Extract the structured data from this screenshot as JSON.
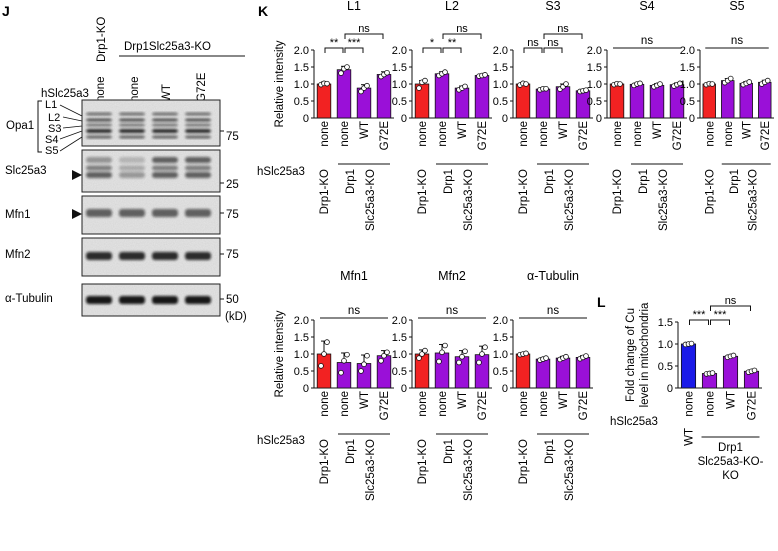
{
  "panel_labels": {
    "j": "J",
    "k": "K",
    "l": "L"
  },
  "blot": {
    "top_headers": {
      "drp1ko": "Drp1-KO",
      "double": "Drp1Slc25a3-KO"
    },
    "row_label": "hSlc25a3",
    "lanes": [
      "none",
      "none",
      "WT",
      "G72E"
    ],
    "bands": {
      "l1": "L1",
      "l2": "L2",
      "s3": "S3",
      "s4": "S4",
      "s5": "S5"
    },
    "opa1": "Opa1",
    "panels": [
      {
        "label": "Slc25a3",
        "marker": "25",
        "arrow": true
      },
      {
        "label": "Mfn1",
        "marker": "75",
        "arrow": true
      },
      {
        "label": "Mfn2",
        "marker": "75",
        "arrow": false
      },
      {
        "label": "α-Tubulin",
        "marker": "50",
        "arrow": false
      }
    ],
    "opa1_marker": "75",
    "unit": "(kD)"
  },
  "chart_data": [
    {
      "type": "bar",
      "title": "L1",
      "ylabel": "Relative intensity",
      "ylim": [
        0,
        2.0
      ],
      "yticks": [
        "0",
        "0.5",
        "1.0",
        "1.5",
        "2.0"
      ],
      "categories": [
        "none",
        "none",
        "WT",
        "G72E"
      ],
      "values": [
        1.0,
        1.42,
        0.88,
        1.28
      ],
      "errors": [
        0.06,
        0.1,
        0.1,
        0.08
      ],
      "points": [
        [
          0.98,
          1.02,
          1.01
        ],
        [
          1.32,
          1.45,
          1.5
        ],
        [
          0.78,
          0.88,
          0.95
        ],
        [
          1.22,
          1.28,
          1.33
        ]
      ],
      "sig": [
        {
          "from": 0,
          "to": 1,
          "label": "**"
        },
        {
          "from": 1,
          "to": 2,
          "label": "***"
        },
        {
          "from": 1,
          "to": 3,
          "label": "ns"
        }
      ]
    },
    {
      "type": "bar",
      "title": "L2",
      "ylabel": "",
      "ylim": [
        0,
        2.0
      ],
      "yticks": [
        "0",
        "0.5",
        "1.0",
        "1.5",
        "2.0"
      ],
      "categories": [
        "none",
        "none",
        "WT",
        "G72E"
      ],
      "values": [
        1.0,
        1.3,
        0.88,
        1.25
      ],
      "errors": [
        0.1,
        0.06,
        0.06,
        0.03
      ],
      "points": [
        [
          0.88,
          1.05,
          1.1
        ],
        [
          1.25,
          1.3,
          1.35
        ],
        [
          0.83,
          0.88,
          0.93
        ],
        [
          1.23,
          1.25,
          1.27
        ]
      ],
      "sig": [
        {
          "from": 0,
          "to": 1,
          "label": "*"
        },
        {
          "from": 1,
          "to": 2,
          "label": "**"
        },
        {
          "from": 1,
          "to": 3,
          "label": "ns"
        }
      ]
    },
    {
      "type": "bar",
      "title": "S3",
      "ylabel": "",
      "ylim": [
        0,
        2.0
      ],
      "yticks": [
        "0",
        "0.5",
        "1.0",
        "1.5",
        "2.0"
      ],
      "categories": [
        "none",
        "none",
        "WT",
        "G72E"
      ],
      "values": [
        1.0,
        0.85,
        0.92,
        0.8
      ],
      "errors": [
        0.04,
        0.03,
        0.08,
        0.03
      ],
      "points": [
        [
          0.97,
          1.02,
          1.0
        ],
        [
          0.83,
          0.86,
          0.86
        ],
        [
          0.85,
          0.92,
          1.0
        ],
        [
          0.78,
          0.8,
          0.82
        ]
      ],
      "sig": [
        {
          "from": 0,
          "to": 1,
          "label": "ns"
        },
        {
          "from": 1,
          "to": 2,
          "label": "ns"
        },
        {
          "from": 1,
          "to": 3,
          "label": "ns"
        }
      ]
    },
    {
      "type": "bar",
      "title": "S4",
      "ylabel": "",
      "ylim": [
        0,
        2.0
      ],
      "yticks": [
        "0",
        "0.5",
        "1.0",
        "1.5",
        "2.0"
      ],
      "categories": [
        "none",
        "none",
        "WT",
        "G72E"
      ],
      "values": [
        1.0,
        0.99,
        0.96,
        0.98
      ],
      "errors": [
        0.03,
        0.04,
        0.05,
        0.05
      ],
      "points": [
        [
          0.98,
          1.01,
          1.0
        ],
        [
          0.96,
          1.0,
          1.02
        ],
        [
          0.92,
          0.96,
          1.0
        ],
        [
          0.94,
          0.98,
          1.02
        ]
      ],
      "sig": [
        {
          "from": 0,
          "to": 3,
          "label": "ns"
        }
      ]
    },
    {
      "type": "bar",
      "title": "S5",
      "ylabel": "",
      "ylim": [
        0,
        2.0
      ],
      "yticks": [
        "0",
        "0.5",
        "1.0",
        "1.5",
        "2.0"
      ],
      "categories": [
        "none",
        "none",
        "WT",
        "G72E"
      ],
      "values": [
        1.0,
        1.1,
        1.02,
        1.05
      ],
      "errors": [
        0.03,
        0.06,
        0.05,
        0.06
      ],
      "points": [
        [
          0.98,
          1.01,
          1.0
        ],
        [
          1.04,
          1.1,
          1.16
        ],
        [
          0.98,
          1.02,
          1.06
        ],
        [
          1.0,
          1.05,
          1.1
        ]
      ],
      "sig": [
        {
          "from": 0,
          "to": 3,
          "label": "ns"
        }
      ]
    },
    {
      "type": "bar",
      "title": "Mfn1",
      "ylabel": "Relative intensity",
      "ylim": [
        0,
        2.0
      ],
      "yticks": [
        "0",
        "0.5",
        "1.0",
        "1.5",
        "2.0"
      ],
      "categories": [
        "none",
        "none",
        "WT",
        "G72E"
      ],
      "values": [
        1.0,
        0.75,
        0.72,
        0.95
      ],
      "errors": [
        0.38,
        0.28,
        0.25,
        0.15
      ],
      "points": [
        [
          0.65,
          1.0,
          1.35
        ],
        [
          0.45,
          0.8,
          0.98
        ],
        [
          0.5,
          0.7,
          0.95
        ],
        [
          0.8,
          0.95,
          1.05
        ]
      ],
      "sig": [
        {
          "from": 0,
          "to": 3,
          "label": "ns"
        }
      ]
    },
    {
      "type": "bar",
      "title": "Mfn2",
      "ylabel": "",
      "ylim": [
        0,
        2.0
      ],
      "yticks": [
        "0",
        "0.5",
        "1.0",
        "1.5",
        "2.0"
      ],
      "categories": [
        "none",
        "none",
        "WT",
        "G72E"
      ],
      "values": [
        1.0,
        1.03,
        0.92,
        0.98
      ],
      "errors": [
        0.12,
        0.25,
        0.18,
        0.25
      ],
      "points": [
        [
          0.88,
          1.0,
          1.1
        ],
        [
          0.78,
          1.05,
          1.25
        ],
        [
          0.75,
          0.92,
          1.08
        ],
        [
          0.75,
          1.0,
          1.2
        ]
      ],
      "sig": [
        {
          "from": 0,
          "to": 3,
          "label": "ns"
        }
      ]
    },
    {
      "type": "bar",
      "title": "α-Tubulin",
      "ylabel": "",
      "ylim": [
        0,
        2.0
      ],
      "yticks": [
        "0",
        "0.5",
        "1.0",
        "1.5",
        "2.0"
      ],
      "categories": [
        "none",
        "none",
        "WT",
        "G72E"
      ],
      "values": [
        1.0,
        0.85,
        0.88,
        0.9
      ],
      "errors": [
        0.03,
        0.04,
        0.05,
        0.05
      ],
      "points": [
        [
          0.98,
          1.0,
          1.02
        ],
        [
          0.82,
          0.85,
          0.88
        ],
        [
          0.84,
          0.88,
          0.92
        ],
        [
          0.86,
          0.9,
          0.94
        ]
      ],
      "sig": [
        {
          "from": 0,
          "to": 3,
          "label": "ns"
        }
      ]
    },
    {
      "type": "bar",
      "title": "",
      "ylabel": "Fold change of Cu level in mitochondria",
      "ylim": [
        0,
        1.5
      ],
      "yticks": [
        "0",
        "0.5",
        "1.0",
        "1.5"
      ],
      "categories": [
        "none",
        "none",
        "WT",
        "G72E"
      ],
      "values": [
        1.0,
        0.33,
        0.72,
        0.38
      ],
      "errors": [
        0.02,
        0.02,
        0.03,
        0.03
      ],
      "points": [
        [
          0.99,
          1.0,
          1.01
        ],
        [
          0.32,
          0.33,
          0.34
        ],
        [
          0.7,
          0.72,
          0.74
        ],
        [
          0.36,
          0.38,
          0.4
        ]
      ],
      "sig": [
        {
          "from": 0,
          "to": 1,
          "label": "***"
        },
        {
          "from": 1,
          "to": 2,
          "label": "***"
        },
        {
          "from": 1,
          "to": 3,
          "label": "ns"
        }
      ]
    }
  ],
  "groups": {
    "drp1ko": "Drp1-KO",
    "drp1": "Drp1",
    "slc": "Slc25a3-KO",
    "ko": "KO",
    "wt": "WT"
  },
  "row_label": "hSlc25a3",
  "colors": {
    "red": "#f22222",
    "purple": "#9a10d8",
    "blue": "#1a1ae8",
    "ink": "#111111"
  }
}
